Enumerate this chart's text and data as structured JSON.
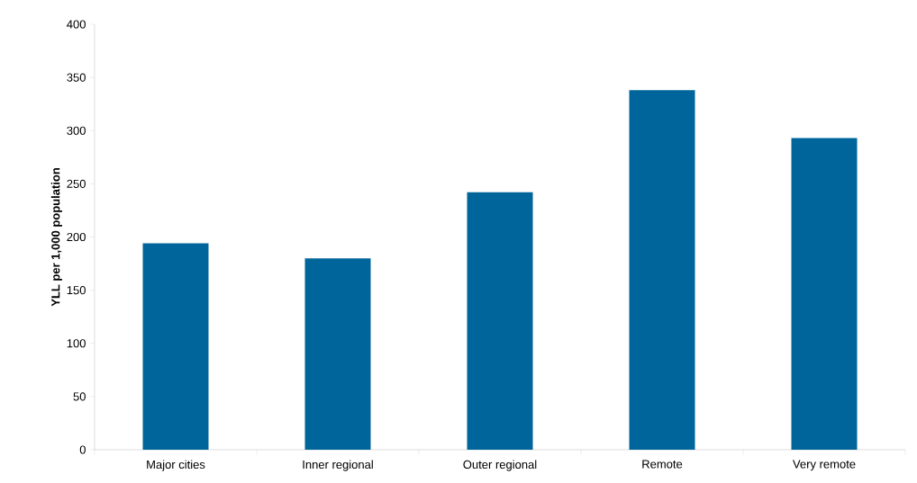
{
  "chart_data": {
    "type": "bar",
    "ylabel": "YLL per 1,000 population",
    "categories": [
      "Major cities",
      "Inner regional",
      "Outer regional",
      "Remote",
      "Very remote"
    ],
    "values": [
      194,
      180,
      242,
      338,
      293
    ],
    "color": "#00659a",
    "ylim": [
      0,
      400
    ],
    "yticks": [
      0,
      50,
      100,
      150,
      200,
      250,
      300,
      350,
      400
    ]
  }
}
